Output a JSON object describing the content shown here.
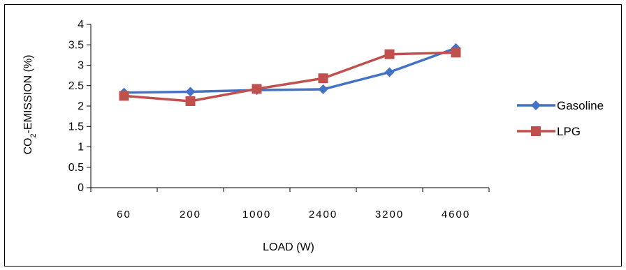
{
  "chart_data": {
    "type": "line",
    "categories": [
      "60",
      "200",
      "1000",
      "2400",
      "3200",
      "4600"
    ],
    "xlabel": "LOAD (W)",
    "ylabel": {
      "prefix": "CO",
      "subscript": "2",
      "suffix": "-EMISSION (%)"
    },
    "ylim": [
      0,
      4
    ],
    "yticks": [
      "0",
      "0.5",
      "1",
      "1.5",
      "2",
      "2.5",
      "3",
      "3.5",
      "4"
    ],
    "grid": false,
    "legend": "right",
    "series": [
      {
        "name": "Gasoline",
        "color": "#4472C4",
        "marker": "diamond",
        "values": [
          2.33,
          2.35,
          2.39,
          2.41,
          2.83,
          3.42
        ]
      },
      {
        "name": "LPG",
        "color": "#C0504D",
        "marker": "square",
        "values": [
          2.25,
          2.12,
          2.42,
          2.68,
          3.27,
          3.31
        ]
      }
    ]
  }
}
